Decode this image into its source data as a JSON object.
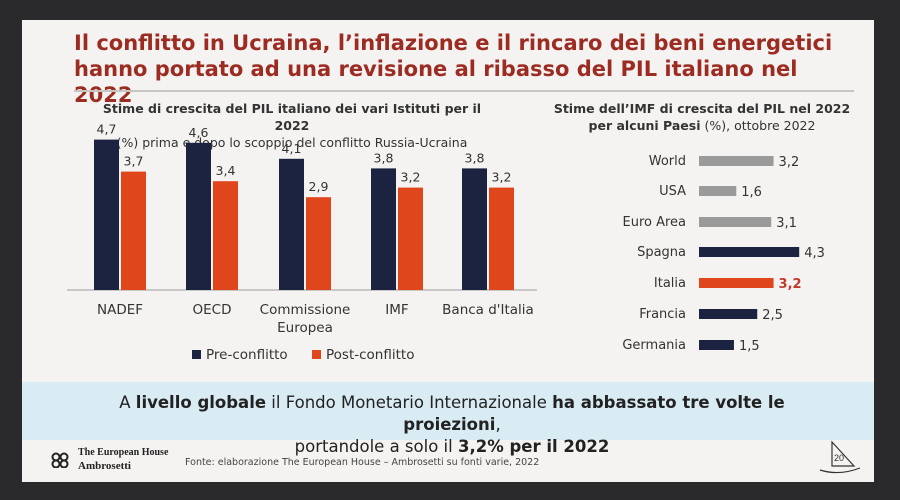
{
  "title": "Il conflitto in Ucraina, l’inflazione e il rincaro dei beni energetici hanno portato ad una revisione al ribasso del PIL italiano nel 2022",
  "left_chart_head": {
    "bold": "Stime di crescita del PIL italiano dei vari Istituti per il 2022",
    "normal": "(%) prima e dopo lo scoppio del conflitto Russia-Ucraina"
  },
  "right_chart_head": {
    "bold": "Stime dell’IMF di crescita del PIL nel 2022 per alcuni Paesi",
    "normal": "(%), ottobre 2022"
  },
  "banner": {
    "p1": "A ",
    "b1": "livello globale",
    "p2": " il Fondo Monetario Internazionale ",
    "b2": "ha abbassato tre volte le proiezioni",
    "p3": ",",
    "p4": "portandole a solo il ",
    "b3": "3,2% per il 2022"
  },
  "footer": {
    "logo_line1": "The European House",
    "logo_line2": "Ambrosetti",
    "source": "Fonte: elaborazione The European House – Ambrosetti su fonti varie, 2022",
    "page": "20"
  },
  "chart_data": [
    {
      "type": "bar",
      "title": "Stime di crescita del PIL italiano dei vari Istituti per il 2022",
      "subtitle": "(%) prima e dopo lo scoppio del conflitto Russia-Ucraina",
      "categories": [
        "NADEF",
        "OECD",
        "Commissione\nEuropea",
        "IMF",
        "Banca d'Italia"
      ],
      "series": [
        {
          "name": "Pre-conflitto",
          "color": "#1c2341",
          "values": [
            4.7,
            4.6,
            4.1,
            3.8,
            3.8
          ]
        },
        {
          "name": "Post-conflitto",
          "color": "#e0461c",
          "values": [
            3.7,
            3.4,
            2.9,
            3.2,
            3.2
          ]
        }
      ],
      "legend": "bottom",
      "ylim": [
        0,
        5
      ]
    },
    {
      "type": "bar",
      "orientation": "horizontal",
      "title": "Stime dell’IMF di crescita del PIL nel 2022 per alcuni Paesi",
      "subtitle": "(%), ottobre 2022",
      "categories": [
        "World",
        "USA",
        "Euro Area",
        "Spagna",
        "Italia",
        "Francia",
        "Germania"
      ],
      "values": [
        3.2,
        1.6,
        3.1,
        4.3,
        3.2,
        2.5,
        1.5
      ],
      "colors": [
        "#9a9a9a",
        "#9a9a9a",
        "#9a9a9a",
        "#1c2341",
        "#e0461c",
        "#1c2341",
        "#1c2341"
      ],
      "highlight": "Italia",
      "xlim": [
        0,
        5
      ]
    }
  ]
}
